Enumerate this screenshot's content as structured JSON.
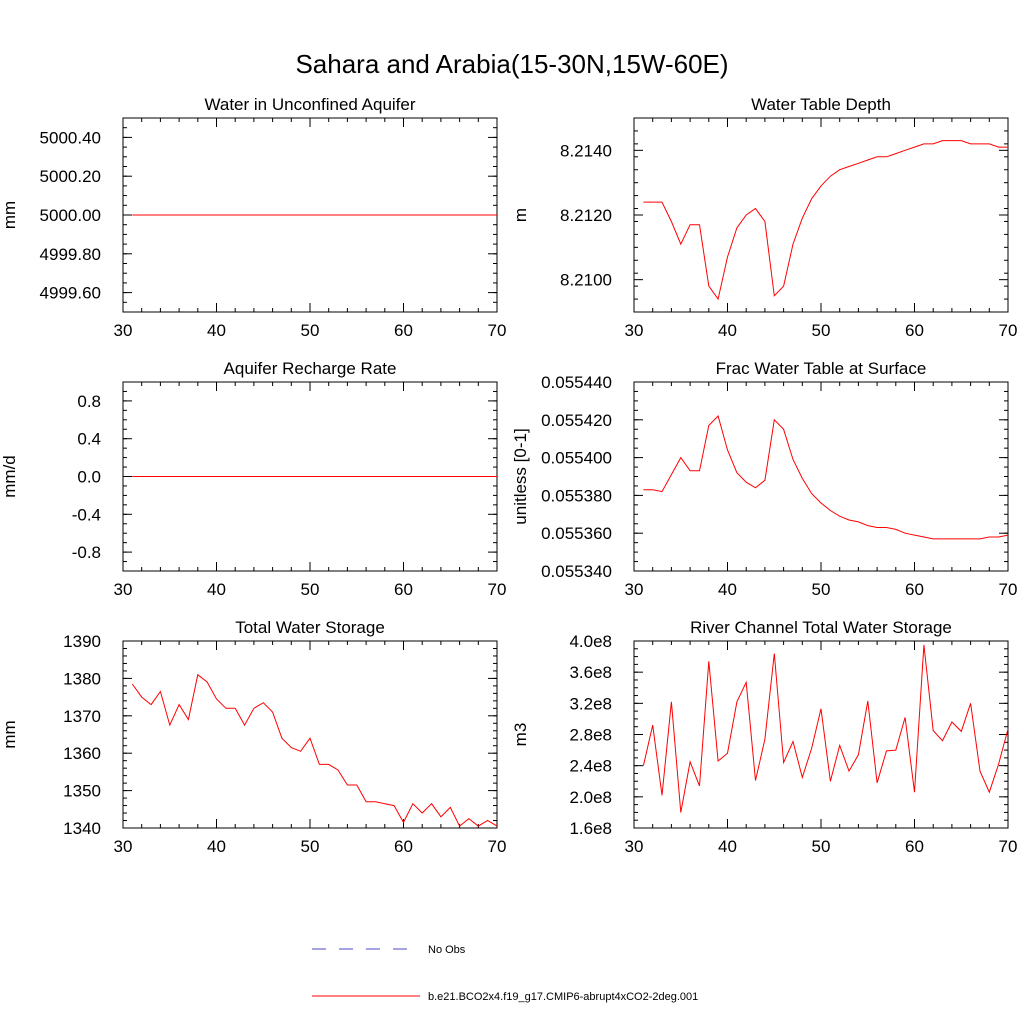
{
  "figure": {
    "title": "Sahara and Arabia(15-30N,15W-60E)"
  },
  "legend": {
    "entries": [
      {
        "label": "No Obs",
        "color": "#4a4ac8",
        "dash": true
      },
      {
        "label": "b.e21.BCO2x4.f19_g17.CMIP6-abrupt4xCO2-2deg.001",
        "color": "#ff0000",
        "dash": false
      }
    ]
  },
  "chart_data": [
    {
      "type": "line",
      "title": "Water in Unconfined Aquifer",
      "xlabel": "",
      "ylabel": "mm",
      "xlim": [
        30,
        70
      ],
      "ylim": [
        4999.5,
        5000.5
      ],
      "xticks": [
        30,
        40,
        50,
        60,
        70
      ],
      "xtick_labels": [
        "30",
        "40",
        "50",
        "60",
        "70"
      ],
      "yticks": [
        4999.6,
        4999.8,
        5000.0,
        5000.2,
        5000.4
      ],
      "ytick_labels": [
        "4999.60",
        "4999.80",
        "5000.00",
        "5000.20",
        "5000.40"
      ],
      "yminor": 0.05,
      "series": [
        {
          "name": "b.e21.BCO2x4.f19_g17.CMIP6-abrupt4xCO2-2deg.001",
          "color": "#ff0000",
          "x": [
            31,
            70
          ],
          "values": [
            5000.0,
            5000.0
          ]
        }
      ]
    },
    {
      "type": "line",
      "title": "Water Table Depth",
      "xlabel": "",
      "ylabel": "m",
      "xlim": [
        30,
        70
      ],
      "ylim": [
        8.209,
        8.215
      ],
      "xticks": [
        30,
        40,
        50,
        60,
        70
      ],
      "xtick_labels": [
        "30",
        "40",
        "50",
        "60",
        "70"
      ],
      "yticks": [
        8.21,
        8.212,
        8.214
      ],
      "ytick_labels": [
        "8.2100",
        "8.2120",
        "8.2140"
      ],
      "yminor": 0.0004,
      "series": [
        {
          "name": "b.e21.BCO2x4.f19_g17.CMIP6-abrupt4xCO2-2deg.001",
          "color": "#ff0000",
          "x": [
            31,
            32,
            33,
            34,
            35,
            36,
            37,
            38,
            39,
            40,
            41,
            42,
            43,
            44,
            45,
            46,
            47,
            48,
            49,
            50,
            51,
            52,
            53,
            54,
            55,
            56,
            57,
            58,
            59,
            60,
            61,
            62,
            63,
            64,
            65,
            66,
            67,
            68,
            69,
            70
          ],
          "values": [
            8.2124,
            8.2124,
            8.2124,
            8.2118,
            8.2111,
            8.2117,
            8.2117,
            8.2098,
            8.2094,
            8.2107,
            8.2116,
            8.212,
            8.2122,
            8.2118,
            8.2095,
            8.2098,
            8.2111,
            8.2119,
            8.2125,
            8.2129,
            8.2132,
            8.2134,
            8.2135,
            8.2136,
            8.2137,
            8.2138,
            8.2138,
            8.2139,
            8.214,
            8.2141,
            8.2142,
            8.2142,
            8.2143,
            8.2143,
            8.2143,
            8.2142,
            8.2142,
            8.2142,
            8.2141,
            8.2141
          ]
        }
      ]
    },
    {
      "type": "line",
      "title": "Aquifer Recharge Rate",
      "xlabel": "",
      "ylabel": "mm/d",
      "xlim": [
        30,
        70
      ],
      "ylim": [
        -1.0,
        1.0
      ],
      "xticks": [
        30,
        40,
        50,
        60,
        70
      ],
      "xtick_labels": [
        "30",
        "40",
        "50",
        "60",
        "70"
      ],
      "yticks": [
        -0.8,
        -0.4,
        0.0,
        0.4,
        0.8
      ],
      "ytick_labels": [
        "-0.8",
        "-0.4",
        "0.0",
        "0.4",
        "0.8"
      ],
      "yminor": 0.1,
      "series": [
        {
          "name": "b.e21.BCO2x4.f19_g17.CMIP6-abrupt4xCO2-2deg.001",
          "color": "#ff0000",
          "x": [
            31,
            70
          ],
          "values": [
            0.0,
            0.0
          ]
        }
      ]
    },
    {
      "type": "line",
      "title": "Frac Water Table at Surface",
      "xlabel": "",
      "ylabel": "unitless [0-1]",
      "xlim": [
        30,
        70
      ],
      "ylim": [
        0.05534,
        0.05544
      ],
      "xticks": [
        30,
        40,
        50,
        60,
        70
      ],
      "xtick_labels": [
        "30",
        "40",
        "50",
        "60",
        "70"
      ],
      "yticks": [
        0.05534,
        0.05536,
        0.05538,
        0.0554,
        0.05542,
        0.05544
      ],
      "ytick_labels": [
        "0.055340",
        "0.055360",
        "0.055380",
        "0.055400",
        "0.055420",
        "0.055440"
      ],
      "yminor": 5e-06,
      "series": [
        {
          "name": "b.e21.BCO2x4.f19_g17.CMIP6-abrupt4xCO2-2deg.001",
          "color": "#ff0000",
          "x": [
            31,
            32,
            33,
            34,
            35,
            36,
            37,
            38,
            39,
            40,
            41,
            42,
            43,
            44,
            45,
            46,
            47,
            48,
            49,
            50,
            51,
            52,
            53,
            54,
            55,
            56,
            57,
            58,
            59,
            60,
            61,
            62,
            63,
            64,
            65,
            66,
            67,
            68,
            69,
            70
          ],
          "values": [
            0.055383,
            0.055383,
            0.055382,
            0.055391,
            0.0554,
            0.055393,
            0.055393,
            0.055417,
            0.055422,
            0.055404,
            0.055392,
            0.055387,
            0.055384,
            0.055388,
            0.05542,
            0.055415,
            0.055399,
            0.055389,
            0.055381,
            0.055376,
            0.055372,
            0.055369,
            0.055367,
            0.055366,
            0.055364,
            0.055363,
            0.055363,
            0.055362,
            0.05536,
            0.055359,
            0.055358,
            0.055357,
            0.055357,
            0.055357,
            0.055357,
            0.055357,
            0.055357,
            0.055358,
            0.055358,
            0.055359
          ]
        }
      ]
    },
    {
      "type": "line",
      "title": "Total Water Storage",
      "xlabel": "",
      "ylabel": "mm",
      "xlim": [
        30,
        70
      ],
      "ylim": [
        1340,
        1390
      ],
      "xticks": [
        30,
        40,
        50,
        60,
        70
      ],
      "xtick_labels": [
        "30",
        "40",
        "50",
        "60",
        "70"
      ],
      "yticks": [
        1340,
        1350,
        1360,
        1370,
        1380,
        1390
      ],
      "ytick_labels": [
        "1340",
        "1350",
        "1360",
        "1370",
        "1380",
        "1390"
      ],
      "yminor": 2,
      "series": [
        {
          "name": "b.e21.BCO2x4.f19_g17.CMIP6-abrupt4xCO2-2deg.001",
          "color": "#ff0000",
          "x": [
            31,
            32,
            33,
            34,
            35,
            36,
            37,
            38,
            39,
            40,
            41,
            42,
            43,
            44,
            45,
            46,
            47,
            48,
            49,
            50,
            51,
            52,
            53,
            54,
            55,
            56,
            57,
            58,
            59,
            60,
            61,
            62,
            63,
            64,
            65,
            66,
            67,
            68,
            69,
            70
          ],
          "values": [
            1378.5,
            1375,
            1373,
            1376.5,
            1367.5,
            1373,
            1369,
            1381,
            1379,
            1374.5,
            1372,
            1372,
            1367.5,
            1372,
            1373.5,
            1371,
            1364,
            1361.5,
            1360.5,
            1364,
            1357,
            1357,
            1355.5,
            1351.5,
            1351.5,
            1347,
            1347,
            1346.5,
            1346,
            1341.5,
            1346.5,
            1344,
            1346.5,
            1343,
            1345.5,
            1340.5,
            1342.5,
            1340.5,
            1342,
            1340.5
          ]
        }
      ]
    },
    {
      "type": "line",
      "title": "River Channel Total Water Storage",
      "xlabel": "",
      "ylabel": "m3",
      "xlim": [
        30,
        70
      ],
      "ylim": [
        160000000,
        400000000
      ],
      "xticks": [
        30,
        40,
        50,
        60,
        70
      ],
      "xtick_labels": [
        "30",
        "40",
        "50",
        "60",
        "70"
      ],
      "yticks": [
        160000000,
        200000000,
        240000000,
        280000000,
        320000000,
        360000000,
        400000000
      ],
      "ytick_labels": [
        "1.6e8",
        "2.0e8",
        "2.4e8",
        "2.8e8",
        "3.2e8",
        "3.6e8",
        "4.0e8"
      ],
      "yminor": 10000000,
      "series": [
        {
          "name": "b.e21.BCO2x4.f19_g17.CMIP6-abrupt4xCO2-2deg.001",
          "color": "#ff0000",
          "x": [
            31,
            32,
            33,
            34,
            35,
            36,
            37,
            38,
            39,
            40,
            41,
            42,
            43,
            44,
            45,
            46,
            47,
            48,
            49,
            50,
            51,
            52,
            53,
            54,
            55,
            56,
            57,
            58,
            59,
            60,
            61,
            62,
            63,
            64,
            65,
            66,
            67,
            68,
            69,
            70
          ],
          "values": [
            240000000,
            292000000,
            202000000,
            322000000,
            180000000,
            245000000,
            214000000,
            374000000,
            246000000,
            256000000,
            322000000,
            347000000,
            221000000,
            274000000,
            384000000,
            244000000,
            271000000,
            225000000,
            262000000,
            313000000,
            220000000,
            266000000,
            233000000,
            254000000,
            323000000,
            218000000,
            259000000,
            260000000,
            302000000,
            206000000,
            395000000,
            285000000,
            272000000,
            296000000,
            284000000,
            320000000,
            233000000,
            206000000,
            242000000,
            287000000
          ]
        }
      ]
    }
  ]
}
